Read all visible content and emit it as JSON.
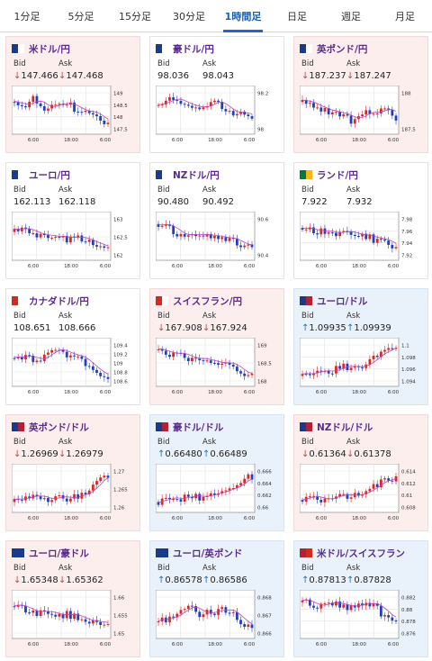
{
  "tabs": [
    "1分足",
    "5分足",
    "15分足",
    "30分足",
    "1時間足",
    "日足",
    "週足",
    "月足"
  ],
  "active_tab": 4,
  "labels": {
    "bid": "Bid",
    "ask": "Ask"
  },
  "cards": [
    {
      "name": "米ドル/円",
      "dir": "down",
      "bid": "147.466",
      "ask": "147.468",
      "flag": [
        "#1a3a8e",
        "#ffffff"
      ],
      "ticks": [
        "149",
        "148.5",
        "148",
        "147.5"
      ],
      "xlabels": [
        "6:00",
        "18:00",
        "6:00"
      ],
      "trend": [
        0.3,
        0.4,
        0.2,
        0.5,
        0.4,
        0.3,
        0.55,
        0.5,
        0.7,
        0.85
      ],
      "seed": 1
    },
    {
      "name": "豪ドル/円",
      "dir": "none",
      "bid": "98.036",
      "ask": "98.043",
      "flag": [
        "#1a3a8e",
        "#ffffff"
      ],
      "ticks": [
        "98.2",
        "98"
      ],
      "xlabels": [
        "6:00",
        "18:00",
        "6:00"
      ],
      "trend": [
        0.4,
        0.2,
        0.3,
        0.5,
        0.45,
        0.3,
        0.4,
        0.6,
        0.5,
        0.7
      ],
      "seed": 2
    },
    {
      "name": "英ポンド/円",
      "dir": "down",
      "bid": "187.237",
      "ask": "187.247",
      "flag": [
        "#1a3a8e",
        "#ffffff"
      ],
      "ticks": [
        "188",
        "187.5"
      ],
      "xlabels": [
        "6:00",
        "18:00",
        "6:00"
      ],
      "trend": [
        0.3,
        0.35,
        0.5,
        0.6,
        0.7,
        0.8,
        0.6,
        0.5,
        0.55,
        0.7
      ],
      "seed": 3
    },
    {
      "name": "ユーロ/円",
      "dir": "none",
      "bid": "162.113",
      "ask": "162.118",
      "flag": [
        "#1a3a8e",
        "#ffffff"
      ],
      "ticks": [
        "163",
        "162.5",
        "162"
      ],
      "xlabels": [
        "6:00",
        "18:00",
        "6:00"
      ],
      "trend": [
        0.4,
        0.3,
        0.5,
        0.45,
        0.55,
        0.6,
        0.5,
        0.65,
        0.8,
        0.85
      ],
      "seed": 4
    },
    {
      "name": "NZドル/円",
      "dir": "none",
      "bid": "90.480",
      "ask": "90.492",
      "flag": [
        "#1a3a8e",
        "#ffffff"
      ],
      "ticks": [
        "90.6",
        "90.4"
      ],
      "xlabels": [
        "6:00",
        "18:00",
        "6:00"
      ],
      "trend": [
        0.2,
        0.3,
        0.5,
        0.4,
        0.45,
        0.55,
        0.5,
        0.6,
        0.75,
        0.8
      ],
      "seed": 5
    },
    {
      "name": "ランド/円",
      "dir": "none",
      "bid": "7.922",
      "ask": "7.932",
      "flag": [
        "#007a3d",
        "#ffb612"
      ],
      "ticks": [
        "7.98",
        "7.96",
        "7.94",
        "7.92"
      ],
      "xlabels": [
        "6:00",
        "18:00",
        "6:00"
      ],
      "trend": [
        0.3,
        0.4,
        0.35,
        0.5,
        0.45,
        0.55,
        0.5,
        0.6,
        0.7,
        0.75
      ],
      "seed": 6
    },
    {
      "name": "カナダドル/円",
      "dir": "none",
      "bid": "108.651",
      "ask": "108.666",
      "flag": [
        "#d52b1e",
        "#ffffff"
      ],
      "ticks": [
        "109.4",
        "109.2",
        "109",
        "108.8",
        "108.6"
      ],
      "xlabels": [
        "6:00",
        "18:00",
        "6:00"
      ],
      "trend": [
        0.4,
        0.35,
        0.5,
        0.3,
        0.2,
        0.3,
        0.4,
        0.6,
        0.8,
        0.85
      ],
      "seed": 7
    },
    {
      "name": "スイスフラン/円",
      "dir": "down",
      "bid": "167.908",
      "ask": "167.924",
      "flag": [
        "#d52b1e",
        "#ffffff"
      ],
      "ticks": [
        "169",
        "168.5",
        "168"
      ],
      "xlabels": [
        "6:00",
        "18:00",
        "6:00"
      ],
      "trend": [
        0.2,
        0.3,
        0.35,
        0.45,
        0.4,
        0.5,
        0.55,
        0.6,
        0.75,
        0.85
      ],
      "seed": 8
    },
    {
      "name": "ユーロ/ドル",
      "dir": "up",
      "bid": "1.09935",
      "ask": "1.09939",
      "flag": [
        "#1a3a8e",
        "#b22234"
      ],
      "ticks": [
        "1.1",
        "1.098",
        "1.096",
        "1.094"
      ],
      "xlabels": [
        "6:00",
        "18:00",
        "6:00"
      ],
      "trend": [
        0.85,
        0.8,
        0.7,
        0.7,
        0.6,
        0.65,
        0.55,
        0.4,
        0.25,
        0.15
      ],
      "seed": 9
    },
    {
      "name": "英ポンド/ドル",
      "dir": "down",
      "bid": "1.26969",
      "ask": "1.26979",
      "flag": [
        "#1a3a8e",
        "#b22234"
      ],
      "ticks": [
        "1.27",
        "1.265",
        "1.26"
      ],
      "xlabels": [
        "6:00",
        "18:00",
        "6:00"
      ],
      "trend": [
        0.85,
        0.8,
        0.75,
        0.8,
        0.7,
        0.75,
        0.7,
        0.6,
        0.3,
        0.2
      ],
      "seed": 10
    },
    {
      "name": "豪ドル/ドル",
      "dir": "up",
      "bid": "0.66480",
      "ask": "0.66489",
      "flag": [
        "#1a3a8e",
        "#b22234"
      ],
      "ticks": [
        "0.666",
        "0.664",
        "0.662",
        "0.66"
      ],
      "xlabels": [
        "6:00",
        "18:00",
        "6:00"
      ],
      "trend": [
        0.85,
        0.75,
        0.8,
        0.7,
        0.75,
        0.6,
        0.65,
        0.5,
        0.3,
        0.2
      ],
      "seed": 11
    },
    {
      "name": "NZドル/ドル",
      "dir": "down",
      "bid": "0.61364",
      "ask": "0.61378",
      "flag": [
        "#1a3a8e",
        "#b22234"
      ],
      "ticks": [
        "0.614",
        "0.612",
        "0.61",
        "0.608"
      ],
      "xlabels": [
        "6:00",
        "18:00",
        "6:00"
      ],
      "trend": [
        0.8,
        0.75,
        0.8,
        0.7,
        0.7,
        0.65,
        0.6,
        0.45,
        0.3,
        0.25
      ],
      "seed": 12
    },
    {
      "name": "ユーロ/豪ドル",
      "dir": "down",
      "bid": "1.65348",
      "ask": "1.65362",
      "flag": [
        "#1a3a8e",
        "#1a3a8e"
      ],
      "ticks": [
        "1.66",
        "1.655",
        "1.65"
      ],
      "xlabels": [
        "6:00",
        "18:00",
        "6:00"
      ],
      "trend": [
        0.3,
        0.4,
        0.45,
        0.5,
        0.55,
        0.5,
        0.6,
        0.65,
        0.7,
        0.75
      ],
      "seed": 13
    },
    {
      "name": "ユーロ/英ポンド",
      "dir": "up",
      "bid": "0.86578",
      "ask": "0.86586",
      "flag": [
        "#1a3a8e",
        "#1a3a8e"
      ],
      "ticks": [
        "0.868",
        "0.867",
        "0.866"
      ],
      "xlabels": [
        "6:00",
        "18:00",
        "6:00"
      ],
      "trend": [
        0.7,
        0.6,
        0.4,
        0.3,
        0.5,
        0.45,
        0.4,
        0.5,
        0.7,
        0.8
      ],
      "seed": 14
    },
    {
      "name": "米ドル/スイスフラン",
      "dir": "up",
      "bid": "0.87813",
      "ask": "0.87828",
      "flag": [
        "#b22234",
        "#d52b1e"
      ],
      "ticks": [
        "0.882",
        "0.88",
        "0.878",
        "0.876"
      ],
      "xlabels": [
        "6:00",
        "18:00",
        "6:00"
      ],
      "trend": [
        0.2,
        0.25,
        0.3,
        0.25,
        0.3,
        0.35,
        0.25,
        0.3,
        0.6,
        0.75
      ],
      "seed": 15
    }
  ]
}
